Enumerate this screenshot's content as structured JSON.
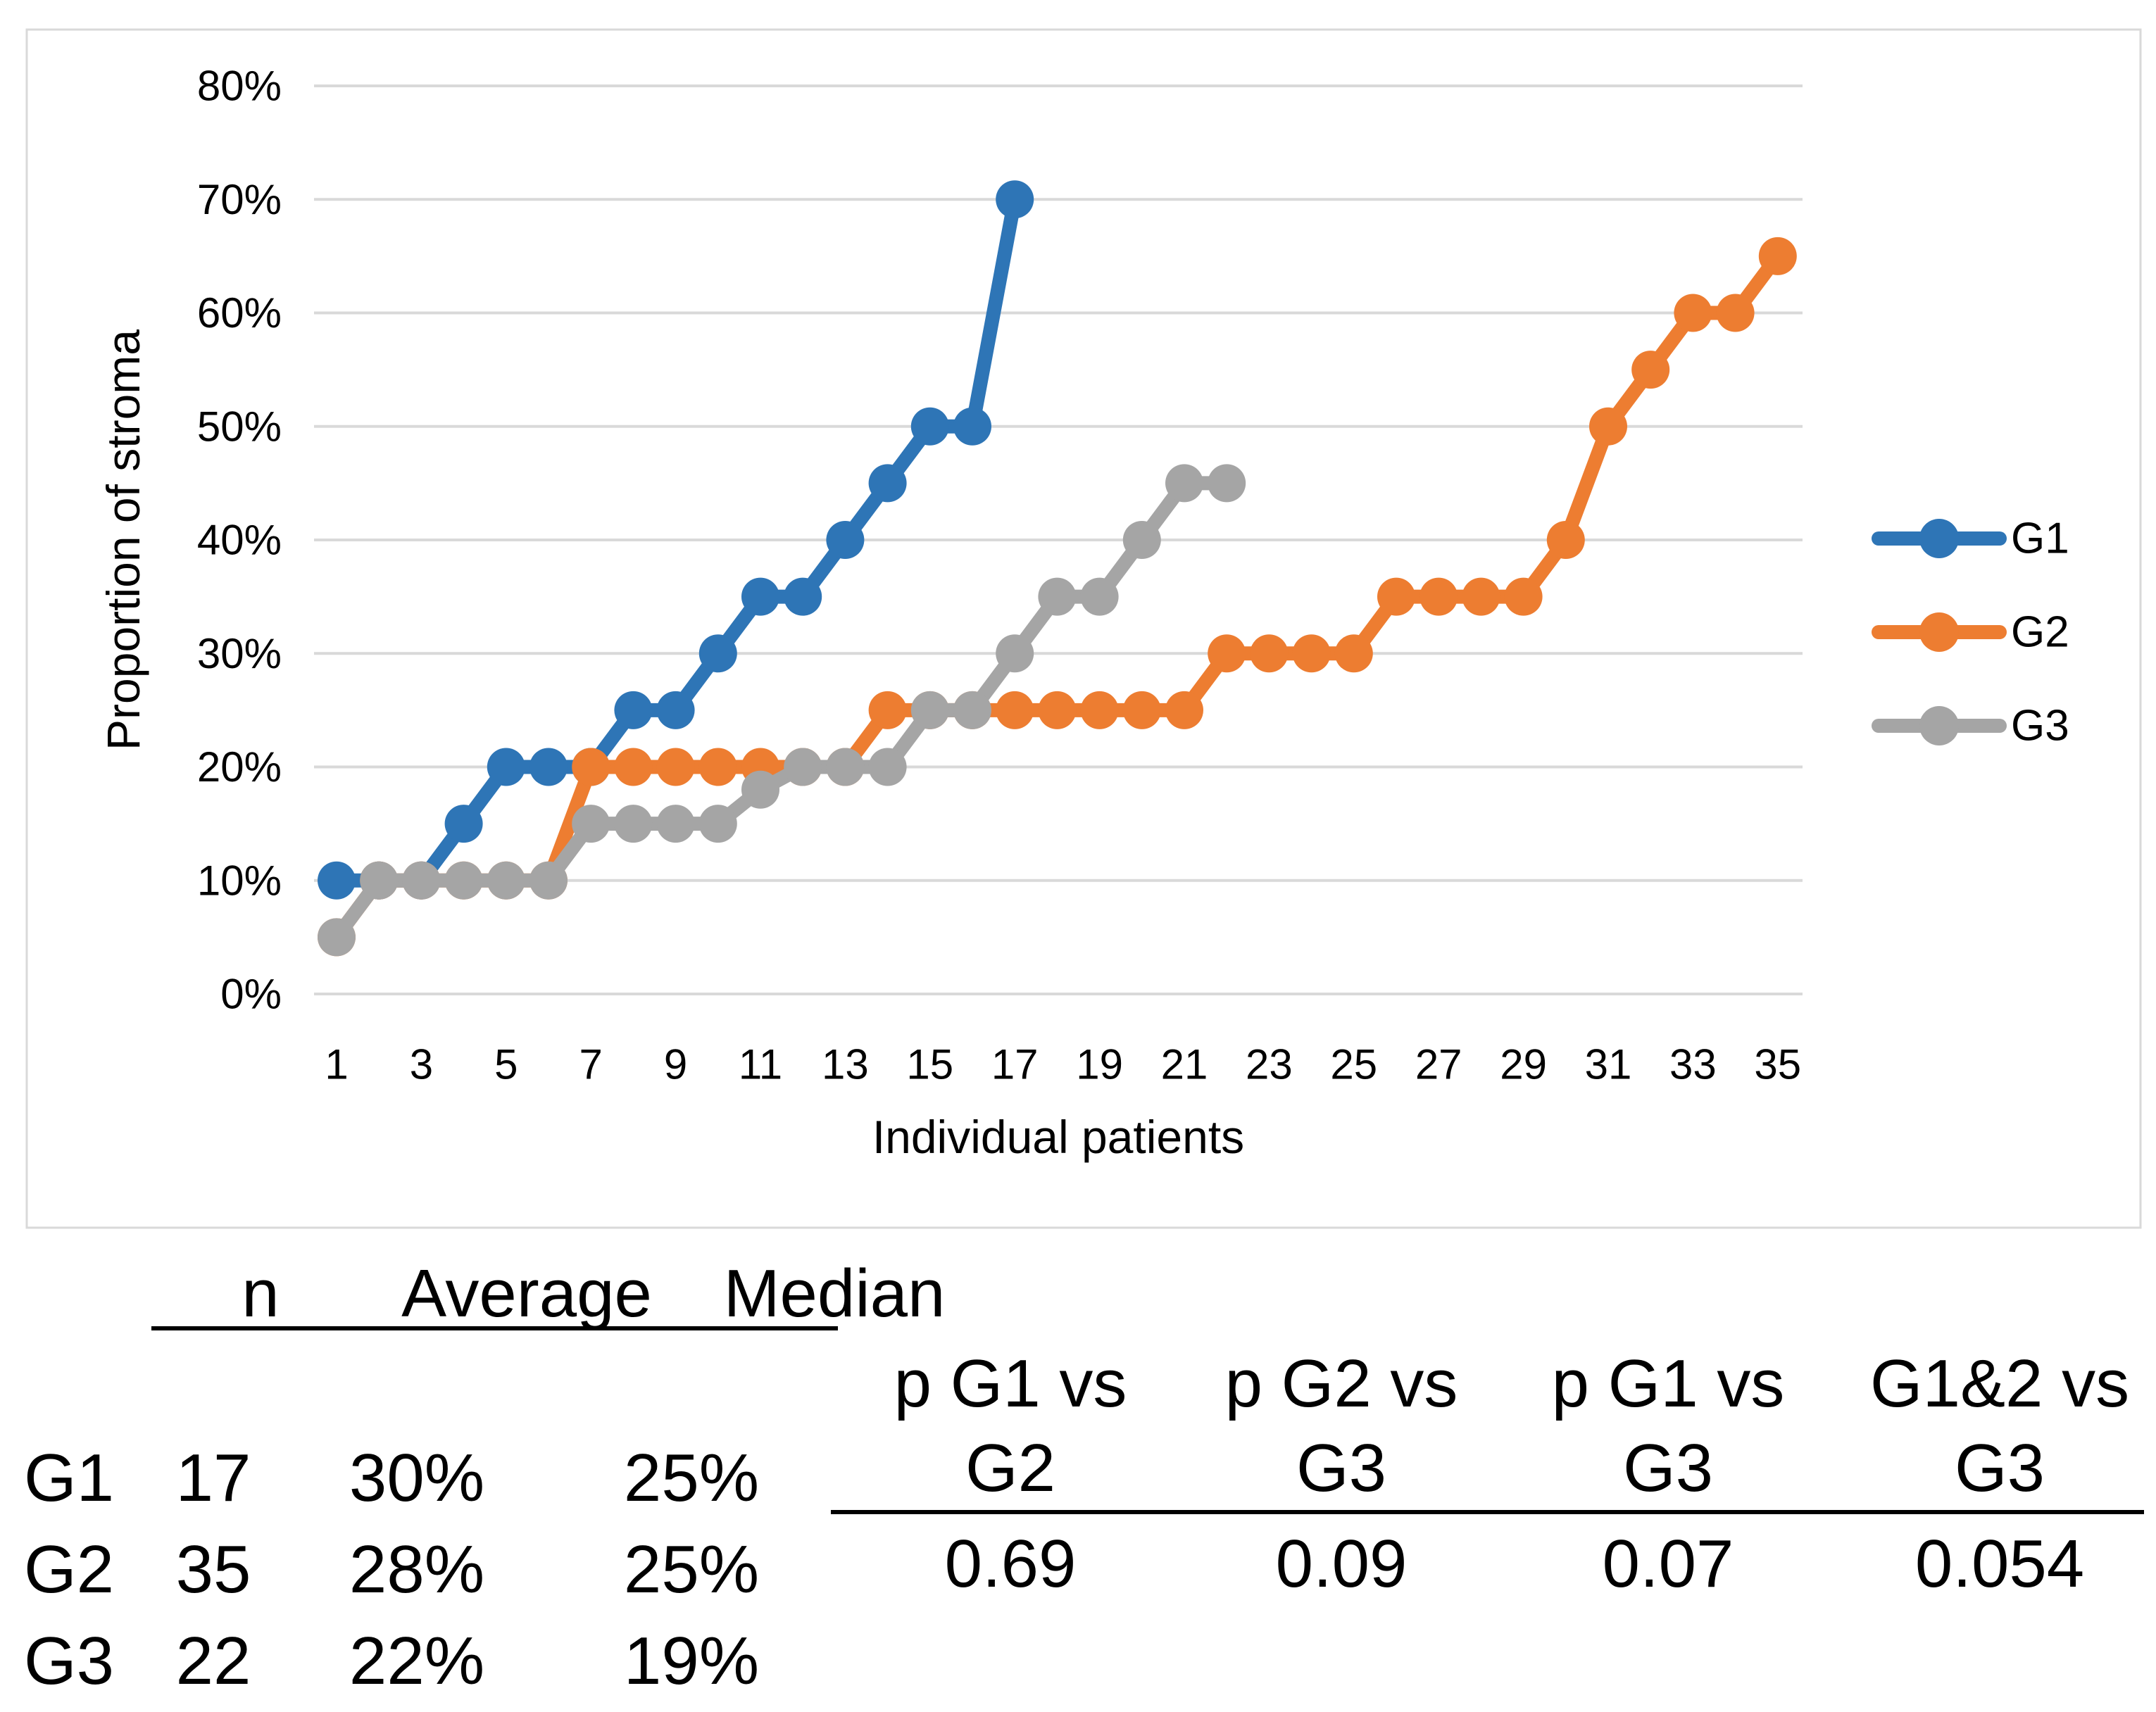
{
  "colors": {
    "g1": "#2E75B6",
    "g2": "#ED7D31",
    "g3": "#A5A5A5",
    "gridline": "#D9D9D9",
    "chart_border": "#D9D9D9",
    "text": "#000000"
  },
  "chart_data": {
    "type": "line",
    "title": "",
    "xlabel": "Individual patients",
    "ylabel": "Proportion of stroma",
    "ylim": [
      0,
      80
    ],
    "ytick_step": 10,
    "ytick_suffix": "%",
    "xticks": [
      1,
      3,
      5,
      7,
      9,
      11,
      13,
      15,
      17,
      19,
      21,
      23,
      25,
      27,
      29,
      31,
      33,
      35
    ],
    "x_start": 1,
    "grid": true,
    "legend_position": "right",
    "series": [
      {
        "name": "G1",
        "values": [
          10,
          10,
          10,
          15,
          20,
          20,
          20,
          25,
          25,
          30,
          35,
          35,
          40,
          45,
          50,
          50,
          70
        ]
      },
      {
        "name": "G2",
        "values": [
          5,
          10,
          10,
          10,
          10,
          10,
          20,
          20,
          20,
          20,
          20,
          20,
          20,
          25,
          25,
          25,
          25,
          25,
          25,
          25,
          25,
          30,
          30,
          30,
          30,
          35,
          35,
          35,
          35,
          40,
          50,
          55,
          60,
          60,
          65
        ]
      },
      {
        "name": "G3",
        "values": [
          5,
          10,
          10,
          10,
          10,
          10,
          15,
          15,
          15,
          15,
          18,
          20,
          20,
          20,
          25,
          25,
          30,
          35,
          35,
          40,
          45,
          45
        ]
      }
    ]
  },
  "summary_table": {
    "col_headers": [
      "n",
      "Average",
      "Median"
    ],
    "rows": [
      {
        "label": "G1",
        "n": "17",
        "average": "30%",
        "median": "25%"
      },
      {
        "label": "G2",
        "n": "35",
        "average": "28%",
        "median": "25%"
      },
      {
        "label": "G3",
        "n": "22",
        "average": "22%",
        "median": "19%"
      }
    ]
  },
  "pvalue_table": {
    "columns": [
      {
        "header_line1": "p G1 vs",
        "header_line2": "G2",
        "value": "0.69"
      },
      {
        "header_line1": "p G2 vs",
        "header_line2": "G3",
        "value": "0.09"
      },
      {
        "header_line1": "p G1 vs",
        "header_line2": "G3",
        "value": "0.07"
      },
      {
        "header_line1": "G1&2 vs",
        "header_line2": "G3",
        "value": "0.054"
      }
    ]
  }
}
